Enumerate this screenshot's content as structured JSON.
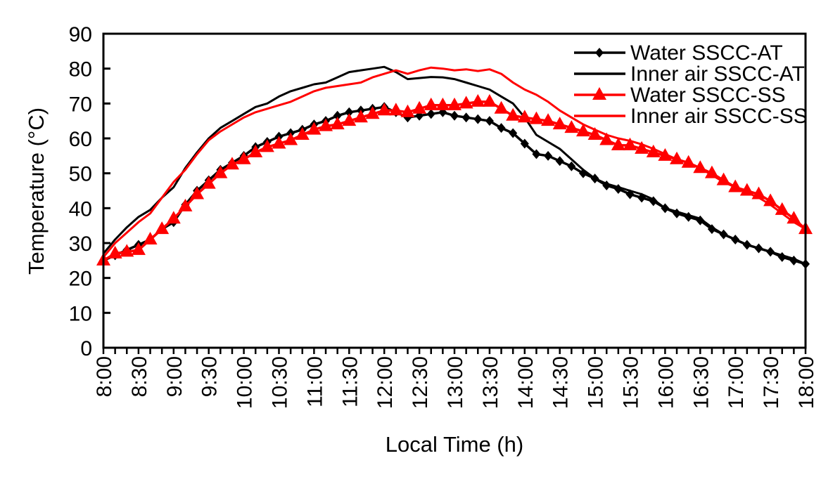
{
  "chart_data": {
    "type": "line",
    "title": "",
    "xlabel": "Local Time (h)",
    "ylabel": "Temperature (°C)",
    "ylim": [
      0,
      90
    ],
    "yticks": [
      "0",
      "10",
      "20",
      "30",
      "40",
      "50",
      "60",
      "70",
      "80",
      "90"
    ],
    "x_step_minutes": 10,
    "x_start": "8:00",
    "x_end": "18:00",
    "xtick_labels": [
      "8:00",
      "8:30",
      "9:00",
      "9:30",
      "10:00",
      "10:30",
      "11:00",
      "11:30",
      "12:00",
      "12:30",
      "13:00",
      "13:30",
      "14:00",
      "14:30",
      "15:00",
      "15:30",
      "16:00",
      "16:30",
      "17:00",
      "17:30",
      "18:00"
    ],
    "grid": false,
    "legend_position": "top-right",
    "series": [
      {
        "name": "Water SSCC-AT",
        "color": "#000000",
        "marker": "diamond",
        "values": [
          25,
          26.5,
          28,
          29.5,
          31,
          34,
          36,
          41,
          45,
          48,
          51,
          53,
          55,
          57.5,
          59,
          60.5,
          61.5,
          62.5,
          64,
          65,
          66.5,
          67.5,
          68,
          68.5,
          69,
          67.5,
          66,
          66.5,
          67,
          67.5,
          66.5,
          66,
          65.5,
          65,
          63,
          61.5,
          58.5,
          55.5,
          55,
          53.5,
          52,
          50,
          48.5,
          46.5,
          45.5,
          44,
          43,
          42,
          40,
          38.5,
          37.5,
          36.5,
          34,
          32.5,
          31,
          29.5,
          28.5,
          27.5,
          26,
          25,
          24
        ]
      },
      {
        "name": "Inner air SSCC-AT",
        "color": "#000000",
        "marker": "none",
        "values": [
          27,
          31,
          34.5,
          37.5,
          39.5,
          43,
          46,
          51.5,
          56,
          60,
          63,
          65,
          67,
          69,
          70,
          72,
          73.5,
          74.5,
          75.5,
          76,
          77.5,
          79,
          79.5,
          80,
          80.5,
          79,
          77,
          77.3,
          77.6,
          77.5,
          77,
          76,
          75,
          74,
          72,
          70,
          66,
          61,
          59,
          57,
          54,
          51,
          48.5,
          47,
          46,
          45,
          44,
          42.5,
          40,
          39,
          38,
          37,
          34.5,
          32.5,
          31,
          29.5,
          28.5,
          27.5,
          26.5,
          25.5,
          24
        ]
      },
      {
        "name": "Water SSCC-SS",
        "color": "#ff0000",
        "marker": "triangle",
        "values": [
          25,
          27,
          27.5,
          28,
          31,
          34,
          37,
          40.5,
          44,
          47,
          50,
          52.5,
          54,
          56,
          57.5,
          58.5,
          59.5,
          61,
          62.5,
          63.5,
          64,
          65,
          66,
          67,
          68,
          68,
          67.5,
          68.5,
          69.5,
          69.5,
          69.5,
          70,
          70.5,
          70.5,
          68.5,
          66.5,
          66,
          65.5,
          65,
          64,
          63,
          62,
          61,
          59.5,
          58,
          58,
          57,
          56,
          55,
          54,
          53,
          51.5,
          50,
          48,
          46,
          45,
          44,
          42,
          39.5,
          37,
          34
        ]
      },
      {
        "name": "Inner air SSCC-SS",
        "color": "#ff0000",
        "marker": "none",
        "values": [
          26,
          30,
          33,
          36,
          38.5,
          43,
          47.5,
          51,
          55.5,
          59.5,
          62,
          64,
          66,
          67.5,
          68.5,
          69.5,
          70.5,
          72,
          73.5,
          74.5,
          75,
          75.5,
          76,
          77.5,
          78.5,
          79.5,
          78.5,
          79.5,
          80.3,
          80,
          79.5,
          79.8,
          79.3,
          79.8,
          78.5,
          76,
          74,
          72.5,
          70.5,
          68,
          66,
          64,
          62.5,
          61,
          60,
          59.3,
          58.3,
          57,
          55.5,
          54,
          53,
          51.5,
          49.5,
          47.5,
          46,
          44.5,
          43,
          41,
          38.5,
          36,
          34
        ]
      }
    ]
  }
}
